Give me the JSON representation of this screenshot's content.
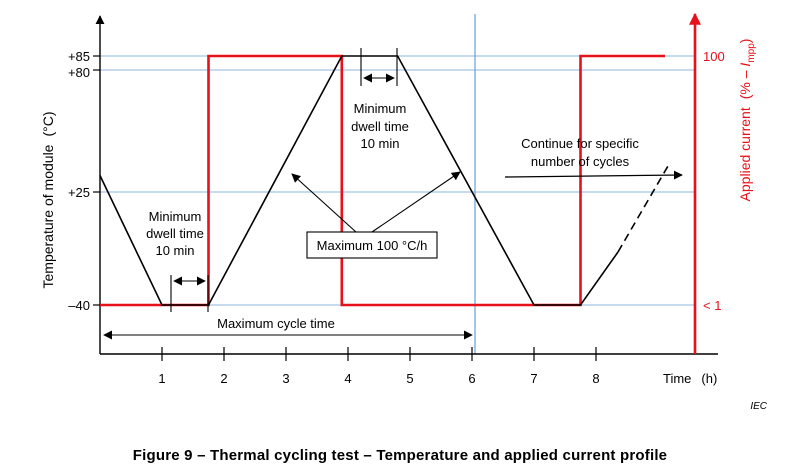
{
  "caption": "Figure 9 – Thermal cycling test – Temperature and applied current profile",
  "watermark": "IEC",
  "y_left_label": "Temperature of module",
  "y_left_unit": "(°C)",
  "y_right_label": "Applied current",
  "y_right_unit_prefix": "(% – ",
  "y_right_unit_var": "I",
  "y_right_unit_sub": "mpp",
  "y_right_unit_suffix": ")",
  "x_label": "Time",
  "x_unit": "(h)",
  "x_ticks": [
    "1",
    "2",
    "3",
    "4",
    "5",
    "6",
    "7",
    "8"
  ],
  "y_left_ticks": [
    "+85",
    "+80",
    "+25",
    "–40"
  ],
  "y_right_ticks": [
    "100",
    "< 1"
  ],
  "annotations": {
    "dwell_low": [
      "Minimum",
      "dwell time",
      "10 min"
    ],
    "dwell_high": [
      "Minimum",
      "dwell time",
      "10 min"
    ],
    "ramp_rate": "Maximum 100 °C/h",
    "cycle_time": "Maximum cycle time",
    "continue": [
      "Continue for specific",
      "number of cycles"
    ]
  },
  "colors": {
    "temperature": "#000000",
    "current": "#e8101a",
    "guide": "#8fb4dc",
    "divider": "#6a9fd6"
  },
  "chart_data": {
    "type": "line",
    "x_unit": "h",
    "series": [
      {
        "points": [
          [
            0,
            25
          ],
          [
            1,
            -40
          ],
          [
            1.75,
            -40
          ],
          [
            3.9,
            85
          ],
          [
            4.8,
            85
          ],
          [
            7,
            -40
          ],
          [
            7.75,
            -40
          ],
          [
            9,
            25
          ]
        ]
      },
      {
        "points": [
          [
            0,
            0
          ],
          [
            1.75,
            0
          ],
          [
            1.75,
            100
          ],
          [
            3.9,
            100
          ],
          [
            3.9,
            0
          ],
          [
            7.75,
            0
          ],
          [
            7.75,
            100
          ],
          [
            9,
            100
          ]
        ]
      }
    ]
  }
}
